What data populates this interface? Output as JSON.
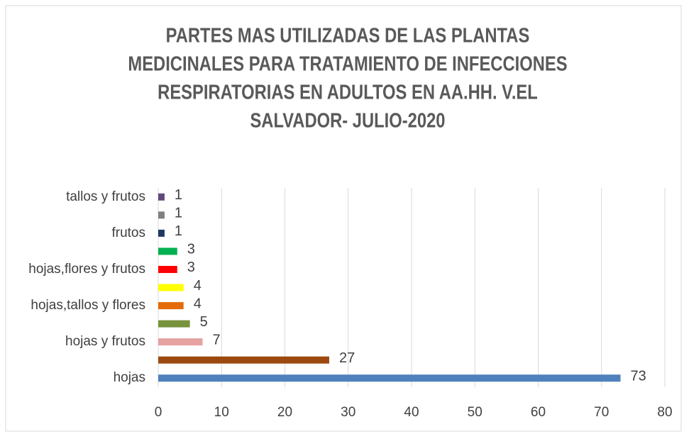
{
  "chart_data": {
    "type": "barh",
    "title": [
      "PARTES MAS UTILIZADAS DE LAS PLANTAS",
      "MEDICINALES PARA TRATAMIENTO DE INFECCIONES",
      "RESPIRATORIAS EN ADULTOS EN AA.HH. V.EL",
      "SALVADOR- JULIO-2020"
    ],
    "categories": [
      "hojas",
      null,
      "hojas y frutos",
      null,
      "hojas,tallos y flores",
      null,
      "hojas,flores y frutos",
      null,
      "frutos",
      null,
      "tallos y frutos"
    ],
    "values": [
      73,
      27,
      7,
      5,
      4,
      4,
      3,
      3,
      1,
      1,
      1
    ],
    "colors": [
      "#4f81bd",
      "#9c4a0f",
      "#e6a1a1",
      "#77933c",
      "#e36c09",
      "#ffff00",
      "#ff0000",
      "#00b050",
      "#1f3864",
      "#808080",
      "#604a7b"
    ],
    "xlim": [
      0,
      80
    ],
    "xticks": [
      0,
      10,
      20,
      30,
      40,
      50,
      60,
      70,
      80
    ],
    "grid": true
  }
}
